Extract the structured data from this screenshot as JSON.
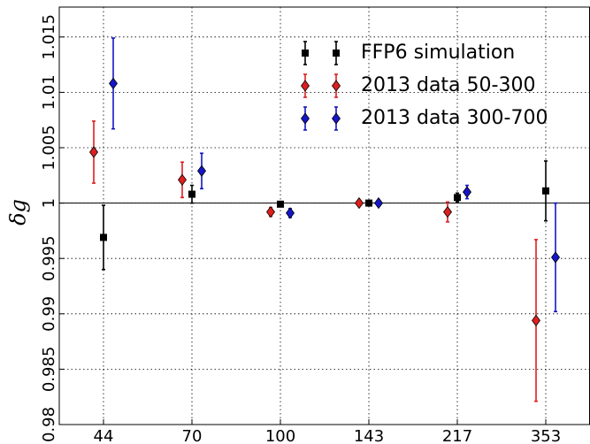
{
  "chart_data": {
    "type": "errorbar",
    "ylabel": "δg",
    "categories": [
      "44",
      "70",
      "100",
      "143",
      "217",
      "353"
    ],
    "series": [
      {
        "name": "FFP6 simulation",
        "color": "#000000",
        "marker": "square",
        "values": [
          0.9969,
          1.0008,
          0.9999,
          1.0,
          1.0005,
          1.0011
        ],
        "errors": [
          0.0029,
          0.0008,
          0.0002,
          0.0001,
          0.0004,
          0.0027
        ]
      },
      {
        "name": "2013 data 50-300",
        "color": "#dd1f1f",
        "marker": "diamond",
        "values": [
          1.0046,
          1.0021,
          0.9992,
          1.0,
          0.9992,
          0.9894
        ],
        "errors": [
          0.0028,
          0.0016,
          0.0004,
          0.0001,
          0.0009,
          0.0073
        ]
      },
      {
        "name": "2013 data 300-700",
        "color": "#1515c8",
        "marker": "diamond",
        "values": [
          1.0108,
          1.0029,
          0.9991,
          1.0,
          1.001,
          0.9951
        ],
        "errors": [
          0.0041,
          0.0016,
          0.0004,
          0.0001,
          0.0006,
          0.0049
        ]
      }
    ],
    "reference_line": 1,
    "ylim": [
      0.98,
      1.0177
    ],
    "yticks": [
      0.98,
      0.985,
      0.99,
      0.995,
      1,
      1.005,
      1.01,
      1.015
    ],
    "grid": true,
    "legend": "upper center"
  }
}
